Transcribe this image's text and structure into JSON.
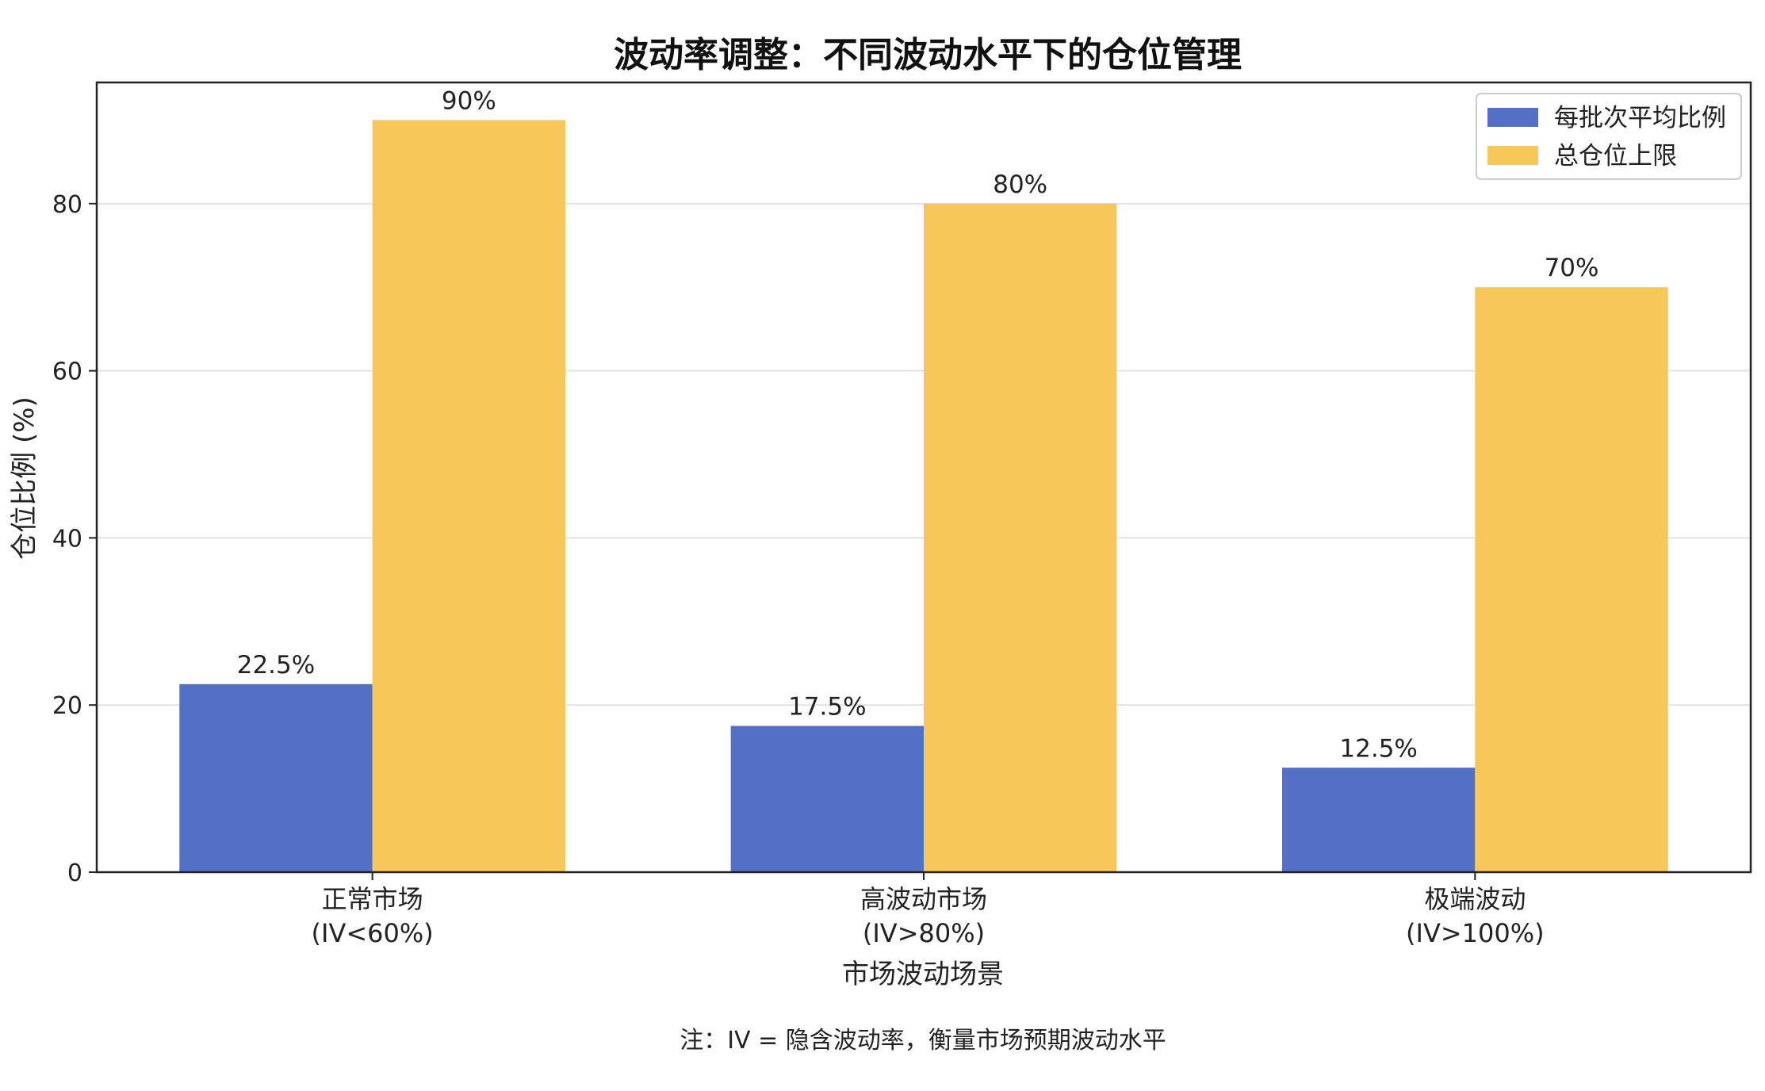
{
  "chart_data": {
    "type": "bar",
    "title": "波动率调整：不同波动水平下的仓位管理",
    "xlabel": "市场波动场景",
    "ylabel": "仓位比例 (%)",
    "categories": [
      [
        "正常市场",
        "(IV<60%)"
      ],
      [
        "高波动市场",
        "(IV>80%)"
      ],
      [
        "极端波动",
        "(IV>100%)"
      ]
    ],
    "series": [
      {
        "name": "每批次平均比例",
        "color": "#5470c6",
        "values": [
          22.5,
          17.5,
          12.5
        ],
        "labels": [
          "22.5%",
          "17.5%",
          "12.5%"
        ]
      },
      {
        "name": "总仓位上限",
        "color": "#f8c75a",
        "values": [
          90,
          80,
          70
        ],
        "labels": [
          "90%",
          "80%",
          "70%"
        ]
      }
    ],
    "ylim": [
      0,
      94.5
    ],
    "yticks": [
      0,
      20,
      40,
      60,
      80
    ],
    "grid": "horizontal",
    "legend_position": "top-right",
    "footnote": "注：IV = 隐含波动率，衡量市场预期波动水平"
  }
}
